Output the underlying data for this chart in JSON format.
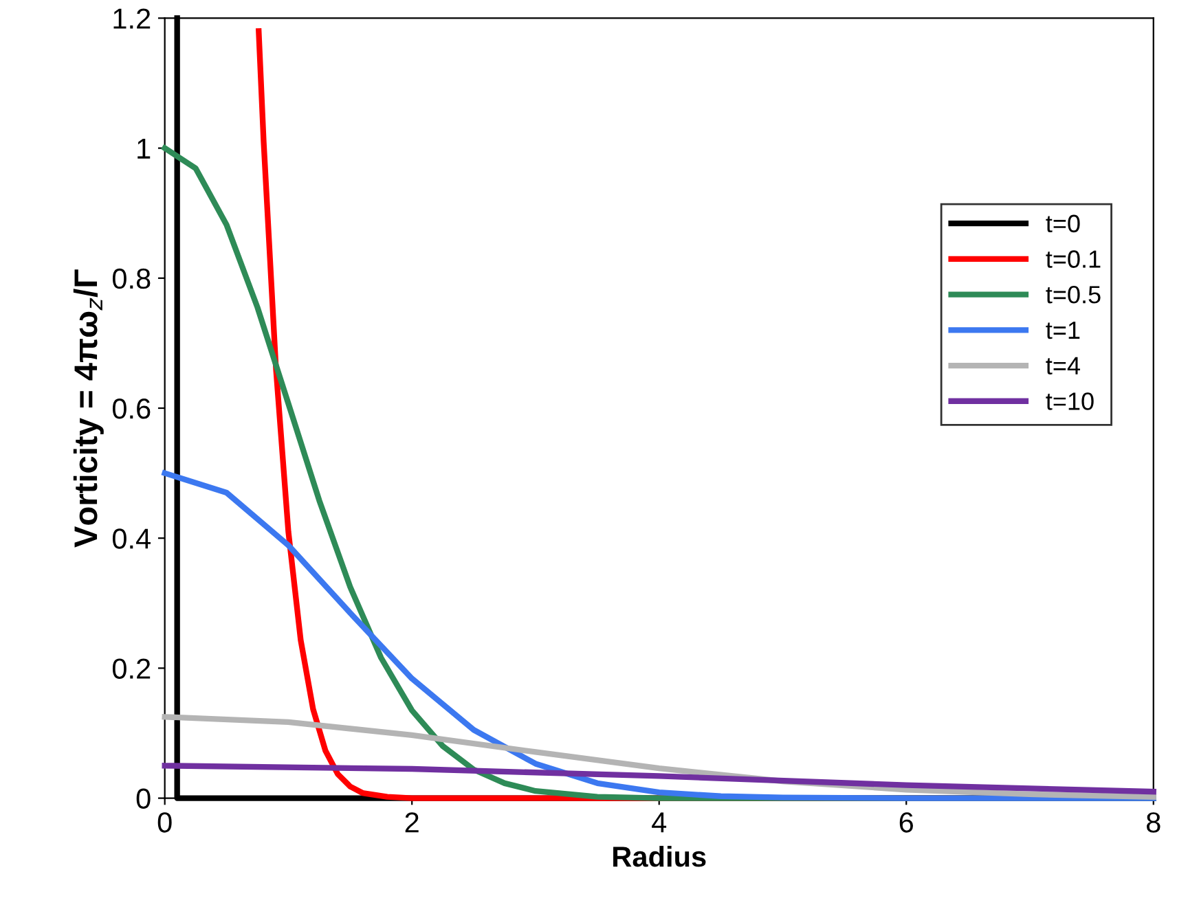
{
  "chart_data": {
    "type": "line",
    "xlabel": "Radius",
    "ylabel": "Vorticity = 4πω$_{z}$/Γ",
    "xlim": [
      0,
      8
    ],
    "ylim": [
      0,
      1.2
    ],
    "xticks": [
      0,
      2,
      4,
      6,
      8
    ],
    "yticks": [
      0,
      0.2,
      0.4,
      0.6,
      0.8,
      1,
      1.2
    ],
    "grid": false,
    "legend": "right",
    "marker": "none",
    "line_style": "solid",
    "series": [
      {
        "name": "t=0",
        "color": "#000000",
        "x": [
          0.1,
          0.1,
          0.1,
          4,
          8
        ],
        "values": [
          1.2,
          0.6,
          0,
          0,
          0
        ]
      },
      {
        "name": "t=0.1",
        "color": "#ff0000",
        "x": [
          0.76,
          0.8,
          0.9,
          1.0,
          1.1,
          1.2,
          1.3,
          1.4,
          1.5,
          1.6,
          1.8,
          2,
          8
        ],
        "values": [
          1.18,
          1.01,
          0.66,
          0.41,
          0.243,
          0.137,
          0.073,
          0.037,
          0.018,
          0.008,
          0.002,
          0,
          0
        ]
      },
      {
        "name": "t=0.5",
        "color": "#2e8b57",
        "x": [
          0,
          0.25,
          0.5,
          0.75,
          1,
          1.25,
          1.5,
          1.75,
          2,
          2.25,
          2.5,
          2.75,
          3,
          3.5,
          4,
          8
        ],
        "values": [
          1,
          0.969,
          0.882,
          0.755,
          0.607,
          0.458,
          0.325,
          0.216,
          0.135,
          0.08,
          0.044,
          0.023,
          0.011,
          0.002,
          0,
          0
        ]
      },
      {
        "name": "t=1",
        "color": "#3c78f0",
        "x": [
          0,
          0.5,
          1,
          1.5,
          2,
          2.5,
          3,
          3.5,
          4,
          4.5,
          5,
          6,
          8
        ],
        "values": [
          0.5,
          0.47,
          0.389,
          0.285,
          0.184,
          0.105,
          0.053,
          0.023,
          0.009,
          0.003,
          0.001,
          0,
          0
        ]
      },
      {
        "name": "t=4",
        "color": "#b4b4b4",
        "x": [
          0,
          1,
          2,
          3,
          4,
          5,
          6,
          7,
          8
        ],
        "values": [
          0.125,
          0.117,
          0.097,
          0.071,
          0.046,
          0.026,
          0.013,
          0.006,
          0.002
        ]
      },
      {
        "name": "t=10",
        "color": "#7030a0",
        "x": [
          0,
          2,
          4,
          6,
          8
        ],
        "values": [
          0.05,
          0.045,
          0.034,
          0.02,
          0.01
        ]
      }
    ]
  }
}
